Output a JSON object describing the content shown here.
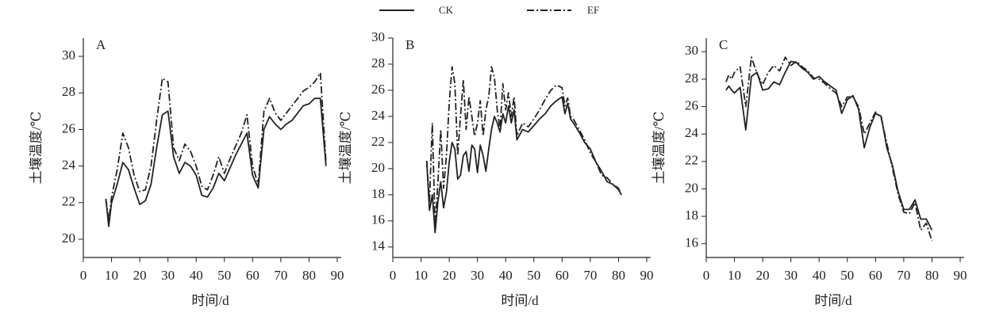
{
  "chart_data": [
    {
      "type": "line",
      "title": "A",
      "xlabel": "时间/d",
      "ylabel": "土壤温度/℃",
      "x": [
        8,
        9,
        10,
        12,
        14,
        16,
        18,
        20,
        22,
        24,
        26,
        28,
        30,
        32,
        34,
        36,
        38,
        40,
        42,
        44,
        46,
        48,
        50,
        52,
        54,
        56,
        58,
        60,
        62,
        64,
        66,
        68,
        70,
        72,
        74,
        76,
        78,
        80,
        82,
        84,
        86
      ],
      "series": [
        {
          "name": "CK",
          "color": "#222222",
          "style": "solid",
          "values": [
            22.2,
            20.7,
            22.0,
            23.0,
            24.2,
            23.8,
            22.8,
            21.9,
            22.1,
            23.0,
            25.0,
            26.8,
            27.0,
            24.5,
            23.6,
            24.2,
            24.0,
            23.5,
            22.4,
            22.3,
            22.8,
            23.6,
            23.2,
            23.9,
            24.6,
            25.2,
            25.8,
            23.5,
            22.8,
            26.0,
            26.7,
            26.3,
            26.0,
            26.3,
            26.5,
            26.9,
            27.3,
            27.4,
            27.7,
            27.7,
            24.0
          ]
        },
        {
          "name": "EF",
          "color": "#222222",
          "style": "dashdot",
          "values": [
            22.2,
            21.0,
            22.3,
            23.8,
            25.8,
            25.0,
            23.5,
            22.6,
            22.7,
            24.0,
            26.5,
            28.8,
            28.6,
            25.0,
            24.3,
            25.2,
            24.8,
            24.0,
            22.9,
            22.7,
            23.5,
            24.5,
            23.6,
            24.4,
            25.1,
            25.8,
            26.8,
            24.0,
            23.0,
            27.0,
            27.7,
            26.9,
            26.5,
            26.9,
            27.3,
            27.7,
            28.1,
            28.3,
            28.6,
            29.1,
            24.2
          ]
        }
      ],
      "xlim": [
        0,
        90
      ],
      "xticks": [
        0,
        10,
        20,
        30,
        40,
        50,
        60,
        70,
        80,
        90
      ],
      "ylim": [
        19,
        31
      ],
      "yticks": [
        20,
        22,
        24,
        26,
        28,
        30
      ]
    },
    {
      "type": "line",
      "title": "B",
      "xlabel": "时间/d",
      "ylabel": "土壤温度/℃",
      "x": [
        12,
        13,
        14,
        15,
        16,
        17,
        18,
        19,
        20,
        21,
        22,
        23,
        24,
        25,
        26,
        27,
        28,
        29,
        30,
        31,
        32,
        33,
        34,
        35,
        36,
        37,
        38,
        39,
        40,
        41,
        42,
        43,
        44,
        46,
        48,
        50,
        52,
        54,
        56,
        58,
        60,
        61,
        62,
        63,
        64,
        66,
        68,
        70,
        72,
        74,
        76,
        78,
        80,
        81
      ],
      "series": [
        {
          "color": "#222222",
          "style": "solid",
          "values": [
            20.6,
            16.8,
            18.0,
            15.1,
            17.5,
            19.0,
            17.0,
            18.2,
            20.5,
            22.0,
            21.5,
            19.2,
            19.5,
            21.0,
            21.3,
            19.8,
            21.8,
            21.5,
            19.7,
            21.8,
            21.0,
            19.8,
            21.5,
            23.0,
            24.0,
            23.5,
            22.8,
            24.2,
            23.5,
            24.8,
            23.5,
            24.5,
            22.2,
            23.0,
            22.8,
            23.3,
            23.8,
            24.2,
            24.8,
            25.2,
            25.5,
            24.2,
            25.0,
            23.8,
            23.5,
            22.8,
            22.0,
            21.5,
            20.5,
            19.8,
            19.0,
            18.8,
            18.4,
            18.0
          ]
        },
        {
          "color": "#222222",
          "style": "dashdot",
          "values": [
            20.6,
            17.5,
            23.5,
            15.5,
            19.0,
            23.0,
            18.5,
            21.0,
            25.0,
            27.8,
            26.5,
            21.0,
            24.0,
            26.8,
            23.0,
            25.5,
            24.0,
            22.5,
            23.5,
            25.2,
            22.5,
            24.5,
            25.5,
            27.8,
            27.0,
            24.5,
            23.0,
            26.5,
            24.5,
            25.8,
            24.0,
            25.5,
            22.5,
            23.5,
            23.2,
            23.8,
            24.5,
            25.3,
            26.0,
            26.4,
            26.2,
            24.8,
            25.4,
            24.0,
            23.8,
            23.0,
            22.2,
            21.2,
            20.5,
            19.5,
            19.3,
            18.8,
            18.5,
            18.0
          ]
        }
      ],
      "xlim": [
        0,
        90
      ],
      "xticks": [
        0,
        10,
        20,
        30,
        40,
        50,
        60,
        70,
        80,
        90
      ],
      "ylim": [
        13.2,
        30
      ],
      "yticks": [
        14,
        16,
        18,
        20,
        22,
        24,
        26,
        28,
        30
      ]
    },
    {
      "type": "line",
      "title": "C",
      "xlabel": "时间/d",
      "ylabel": "土壤温度/℃",
      "x": [
        7,
        8,
        9,
        10,
        12,
        14,
        16,
        18,
        20,
        22,
        24,
        26,
        28,
        30,
        32,
        34,
        36,
        38,
        40,
        42,
        44,
        46,
        48,
        50,
        52,
        54,
        56,
        58,
        60,
        62,
        64,
        66,
        68,
        70,
        72,
        74,
        76,
        78,
        80
      ],
      "series": [
        {
          "color": "#222222",
          "style": "solid",
          "values": [
            27.2,
            27.5,
            27.2,
            27.0,
            27.4,
            24.3,
            28.2,
            28.5,
            27.2,
            27.3,
            27.8,
            27.6,
            28.5,
            29.3,
            29.2,
            28.8,
            28.5,
            28.0,
            28.2,
            27.8,
            27.5,
            27.2,
            25.5,
            26.5,
            26.8,
            25.8,
            23.0,
            24.5,
            25.5,
            25.3,
            23.0,
            21.7,
            19.8,
            18.5,
            18.5,
            19.2,
            17.8,
            17.8,
            17.0
          ]
        },
        {
          "color": "#222222",
          "style": "dashdot",
          "values": [
            27.8,
            28.3,
            28.0,
            28.5,
            28.9,
            26.0,
            29.6,
            28.4,
            27.6,
            28.5,
            29.0,
            28.6,
            29.6,
            29.0,
            29.3,
            28.9,
            28.6,
            28.1,
            28.0,
            27.7,
            27.3,
            27.0,
            26.0,
            26.7,
            26.7,
            26.0,
            24.0,
            24.8,
            25.6,
            25.2,
            23.3,
            21.5,
            19.6,
            18.3,
            18.2,
            19.0,
            17.0,
            17.5,
            16.2
          ]
        }
      ],
      "xlim": [
        0,
        90
      ],
      "xticks": [
        0,
        10,
        20,
        30,
        40,
        50,
        60,
        70,
        80,
        90
      ],
      "ylim": [
        15,
        31
      ],
      "yticks": [
        16,
        18,
        20,
        22,
        24,
        26,
        28,
        30
      ]
    }
  ]
}
